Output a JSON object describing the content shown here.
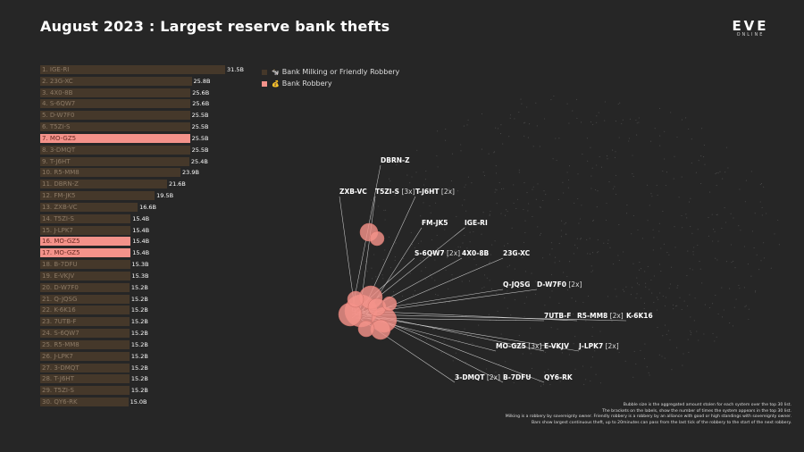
{
  "title": "August 2023 : Largest reserve bank thefts",
  "logo": {
    "name": "EVE",
    "sub": "ONLINE"
  },
  "colors": {
    "background": "#262626",
    "milking": "#45382a",
    "robbery": "#f4928a",
    "bubble": "#f4928a"
  },
  "legend": [
    {
      "icon": "milk-icon",
      "label": "Bank Milking or Friendly Robbery",
      "color": "#45382a"
    },
    {
      "icon": "money-bag-icon",
      "label": "Bank Robbery",
      "color": "#f4928a"
    }
  ],
  "chart_data": [
    {
      "type": "bar",
      "orientation": "horizontal",
      "unit": "B",
      "xlim": [
        0,
        31.5
      ],
      "categories": [
        "1. IGE-RI",
        "2. 23G-XC",
        "3. 4X0-8B",
        "4. S-6QW7",
        "5. D-W7F0",
        "6. T5ZI-S",
        "7. MO-GZ5",
        "8. 3-DMQT",
        "9. T-J6HT",
        "10. R5-MM8",
        "11. DBRN-Z",
        "12. FM-JK5",
        "13. ZXB-VC",
        "14. T5ZI-S",
        "15. J-LPK7",
        "16. MO-GZ5",
        "17. MO-GZ5",
        "18. B-7DFU",
        "19. E-VKJV",
        "20. D-W7F0",
        "21. Q-JQSG",
        "22. K-6K16",
        "23. 7UTB-F",
        "24. S-6QW7",
        "25. R5-MM8",
        "26. J-LPK7",
        "27. 3-DMQT",
        "28. T-J6HT",
        "29. T5ZI-S",
        "30. QY6-RK"
      ],
      "values": [
        31.5,
        25.8,
        25.6,
        25.6,
        25.5,
        25.5,
        25.5,
        25.5,
        25.4,
        23.9,
        21.6,
        19.5,
        16.6,
        15.4,
        15.4,
        15.4,
        15.4,
        15.3,
        15.3,
        15.2,
        15.2,
        15.2,
        15.2,
        15.2,
        15.2,
        15.2,
        15.2,
        15.2,
        15.2,
        15.0
      ],
      "value_labels": [
        "31.5B",
        "25.8B",
        "25.6B",
        "25.6B",
        "25.5B",
        "25.5B",
        "25.5B",
        "25.5B",
        "25.4B",
        "23.9B",
        "21.6B",
        "19.5B",
        "16.6B",
        "15.4B",
        "15.4B",
        "15.4B",
        "15.4B",
        "15.3B",
        "15.3B",
        "15.2B",
        "15.2B",
        "15.2B",
        "15.2B",
        "15.2B",
        "15.2B",
        "15.2B",
        "15.2B",
        "15.2B",
        "15.2B",
        "15.0B"
      ],
      "kind": [
        "milking",
        "milking",
        "milking",
        "milking",
        "milking",
        "milking",
        "robbery",
        "milking",
        "milking",
        "milking",
        "milking",
        "milking",
        "milking",
        "milking",
        "milking",
        "robbery",
        "robbery",
        "milking",
        "milking",
        "milking",
        "milking",
        "milking",
        "milking",
        "milking",
        "milking",
        "milking",
        "milking",
        "milking",
        "milking",
        "milking"
      ]
    },
    {
      "type": "scatter",
      "subtype": "bubble-map",
      "labels": [
        {
          "name": "DBRN-Z",
          "count": ""
        },
        {
          "name": "ZXB-VC",
          "count": ""
        },
        {
          "name": "T5ZI-S",
          "count": "[3x]"
        },
        {
          "name": "T-J6HT",
          "count": "[2x]"
        },
        {
          "name": "FM-JK5",
          "count": ""
        },
        {
          "name": "IGE-RI",
          "count": ""
        },
        {
          "name": "S-6QW7",
          "count": "[2x]"
        },
        {
          "name": "4X0-8B",
          "count": ""
        },
        {
          "name": "23G-XC",
          "count": ""
        },
        {
          "name": "Q-JQSG",
          "count": ""
        },
        {
          "name": "D-W7F0",
          "count": "[2x]"
        },
        {
          "name": "7UTB-F",
          "count": ""
        },
        {
          "name": "R5-MM8",
          "count": "[2x]"
        },
        {
          "name": "K-6K16",
          "count": ""
        },
        {
          "name": "MO-GZ5",
          "count": "[3x]"
        },
        {
          "name": "E-VKJV",
          "count": ""
        },
        {
          "name": "J-LPK7",
          "count": "[2x]"
        },
        {
          "name": "3-DMQT",
          "count": "[2x]"
        },
        {
          "name": "B-7DFU",
          "count": ""
        },
        {
          "name": "QY6-RK",
          "count": ""
        }
      ]
    }
  ],
  "notes": [
    "Bubble size is the aggregated amount stolen for each system over the top 30 list.",
    "The brackets on the labels, show the number of times the system appears in the top 30 list.",
    "Milking is a robbery by sovereignty owner. Friendly robbery is a robbery by an alliance with good or high standings with sovereignty owner.",
    "Bars show largest continuous theft, up to 20minutes can pass from the last tick of the robbery to the start of the next robbery."
  ]
}
